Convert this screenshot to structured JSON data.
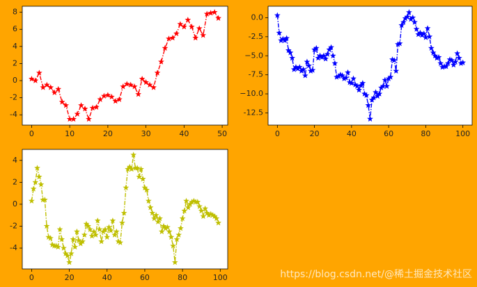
{
  "chart_data": [
    {
      "type": "line",
      "color": "#ff0000",
      "x": [
        0,
        1,
        2,
        3,
        4,
        5,
        6,
        7,
        8,
        9,
        10,
        11,
        12,
        13,
        14,
        15,
        16,
        17,
        18,
        19,
        20,
        21,
        22,
        23,
        24,
        25,
        26,
        27,
        28,
        29,
        30,
        31,
        32,
        33,
        34,
        35,
        36,
        37,
        38,
        39,
        40,
        41,
        42,
        43,
        44,
        45,
        46,
        47,
        48,
        49
      ],
      "values": [
        0.2,
        0,
        0.9,
        -0.8,
        -0.5,
        -0.8,
        -1.4,
        -1,
        -2.5,
        -2.9,
        -4.5,
        -4.5,
        -3.9,
        -2.9,
        -3.3,
        -4.5,
        -3.2,
        -3.1,
        -2.2,
        -1.8,
        -1.7,
        -1.9,
        -2.4,
        -2.2,
        -0.7,
        -0.4,
        -0.5,
        -0.7,
        -1.6,
        0.2,
        -0.2,
        -0.5,
        -0.8,
        0.9,
        2.2,
        3.8,
        4.9,
        5,
        5.5,
        6.6,
        6.3,
        7.1,
        6.3,
        5,
        6.1,
        5.3,
        7.8,
        7.9,
        8,
        7.3
      ],
      "xlim": [
        -2.45,
        51.45
      ],
      "ylim": [
        -5.2,
        8.7
      ],
      "xticks": [
        0,
        10,
        20,
        30,
        40,
        50
      ],
      "yticks": [
        -4,
        -2,
        0,
        2,
        4,
        6,
        8
      ]
    },
    {
      "type": "line",
      "color": "#0000ff",
      "x": [
        0,
        1,
        2,
        3,
        4,
        5,
        6,
        7,
        8,
        9,
        10,
        11,
        12,
        13,
        14,
        15,
        16,
        17,
        18,
        19,
        20,
        21,
        22,
        23,
        24,
        25,
        26,
        27,
        28,
        29,
        30,
        31,
        32,
        33,
        34,
        35,
        36,
        37,
        38,
        39,
        40,
        41,
        42,
        43,
        44,
        45,
        46,
        47,
        48,
        49,
        50,
        51,
        52,
        53,
        54,
        55,
        56,
        57,
        58,
        59,
        60,
        61,
        62,
        63,
        64,
        65,
        66,
        67,
        68,
        69,
        70,
        71,
        72,
        73,
        74,
        75,
        76,
        77,
        78,
        79,
        80,
        81,
        82,
        83,
        84,
        85,
        86,
        87,
        88,
        89,
        90,
        91,
        92,
        93,
        94,
        95,
        96,
        97,
        98,
        99,
        100
      ],
      "values": [
        0.3,
        -2,
        -3,
        -2.8,
        -3,
        -2.7,
        -4.3,
        -4.6,
        -5.3,
        -6.8,
        -6.5,
        -6.7,
        -6.5,
        -7,
        -6.8,
        -7.6,
        -5.8,
        -6.3,
        -7,
        -6.9,
        -4.2,
        -4,
        -5.3,
        -5,
        -5.2,
        -5,
        -5.4,
        -4.8,
        -4.2,
        -3.9,
        -5,
        -6,
        -7.8,
        -7.7,
        -7.5,
        -7.6,
        -8,
        -7.9,
        -7.2,
        -8.5,
        -8.6,
        -8,
        -8.8,
        -9,
        -9.5,
        -8.9,
        -8.6,
        -10,
        -10.2,
        -11.5,
        -13.3,
        -10.8,
        -10.5,
        -9.8,
        -10.3,
        -10,
        -9.2,
        -9,
        -8.2,
        -9,
        -8,
        -7.8,
        -5.5,
        -5.6,
        -7,
        -3.5,
        -3.4,
        -1,
        -0.6,
        -0.1,
        0.1,
        0.7,
        -0.2,
        0,
        -0.6,
        -1.5,
        -2.2,
        -2,
        -2.3,
        -2.1,
        -2.6,
        -1.4,
        -2.5,
        -4,
        -4.6,
        -5,
        -5.3,
        -5.2,
        -6,
        -6.5,
        -6.4,
        -6.4,
        -6,
        -5.5,
        -5.6,
        -6.2,
        -5.8,
        -4.7,
        -5.3,
        -6,
        -5.9
      ],
      "xlim": [
        -5,
        105
      ],
      "ylim": [
        -14.1,
        1.5
      ],
      "xticks": [
        0,
        20,
        40,
        60,
        80,
        100
      ],
      "yticks": [
        -12.5,
        {
          "value": -10,
          "label": "−10.0"
        },
        -7.5,
        {
          "value": -5,
          "label": "−5.0"
        },
        -2.5,
        {
          "value": 0,
          "label": "0.0"
        }
      ]
    },
    {
      "type": "line",
      "color": "#bfbf00",
      "x": [
        0,
        1,
        2,
        3,
        4,
        5,
        6,
        7,
        8,
        9,
        10,
        11,
        12,
        13,
        14,
        15,
        16,
        17,
        18,
        19,
        20,
        21,
        22,
        23,
        24,
        25,
        26,
        27,
        28,
        29,
        30,
        31,
        32,
        33,
        34,
        35,
        36,
        37,
        38,
        39,
        40,
        41,
        42,
        43,
        44,
        45,
        46,
        47,
        48,
        49,
        50,
        51,
        52,
        53,
        54,
        55,
        56,
        57,
        58,
        59,
        60,
        61,
        62,
        63,
        64,
        65,
        66,
        67,
        68,
        69,
        70,
        71,
        72,
        73,
        74,
        75,
        76,
        77,
        78,
        79,
        80,
        81,
        82,
        83,
        84,
        85,
        86,
        87,
        88,
        89,
        90,
        91,
        92,
        93,
        94,
        95,
        96,
        97,
        98,
        99
      ],
      "values": [
        0.3,
        1.4,
        2,
        3.3,
        2.5,
        1.8,
        0.4,
        0.4,
        -2,
        -3,
        -3.1,
        -3.7,
        -3.8,
        -3.8,
        -3.9,
        -2.3,
        -3.2,
        -4,
        -4.5,
        -4.7,
        -5.3,
        -4.5,
        -3.2,
        -3.9,
        -2.5,
        -3.3,
        -3.6,
        -3.4,
        -2.8,
        -1.8,
        -2,
        -2.3,
        -2.9,
        -2.5,
        -2.8,
        -1.5,
        -2.3,
        -3.4,
        -2.5,
        -2.3,
        -3,
        -2.1,
        -2.4,
        -1.5,
        -2.8,
        -2.5,
        -3.4,
        -3.5,
        -1.7,
        -0.8,
        1.5,
        3.2,
        3.4,
        3.2,
        4.5,
        3.3,
        3.3,
        2.5,
        3.2,
        2.3,
        1.5,
        1.3,
        0.3,
        -0.3,
        -0.8,
        -1.3,
        -1,
        -1.6,
        -1.3,
        -2.5,
        -2,
        -2.2,
        -2.1,
        -2.5,
        -3,
        -3.8,
        -5.3,
        -3.2,
        -2.8,
        -2.2,
        -1.3,
        -0.6,
        0.3,
        -0.3,
        0,
        0.2,
        0.3,
        0.2,
        0.2,
        -0.2,
        -0.6,
        -1.1,
        -0.4,
        -0.8,
        -1,
        -0.9,
        -1,
        -1.1,
        -1.3,
        -1.7
      ],
      "xlim": [
        -4.95,
        103.95
      ],
      "ylim": [
        -5.9,
        5.0
      ],
      "xticks": [
        0,
        20,
        40,
        60,
        80,
        100
      ],
      "yticks": [
        -4,
        -2,
        0,
        2,
        4
      ]
    }
  ],
  "watermark": "https://blog.csdn.net/@稀土掘金技术社区"
}
